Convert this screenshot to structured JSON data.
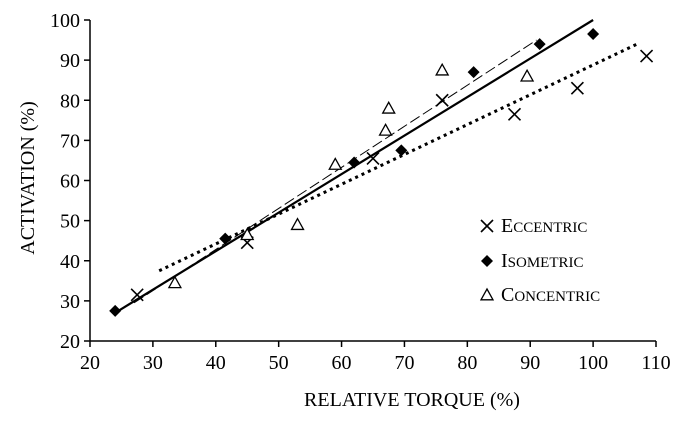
{
  "chart_data": {
    "type": "scatter",
    "title": "",
    "xlabel": "RELATIVE TORQUE (%)",
    "ylabel": "ACTIVATION (%)",
    "xlim": [
      20,
      110
    ],
    "ylim": [
      20,
      100
    ],
    "xticks": [
      20,
      30,
      40,
      50,
      60,
      70,
      80,
      90,
      100,
      110
    ],
    "yticks": [
      20,
      30,
      40,
      50,
      60,
      70,
      80,
      90,
      100
    ],
    "grid": false,
    "legend_position": "bottom-right",
    "series": [
      {
        "name": "ECCENTRIC",
        "marker": "x",
        "fit_line": "dotted",
        "fit": {
          "x": [
            31,
            107
          ],
          "y": [
            37.5,
            94
          ]
        },
        "points": [
          {
            "x": 27.5,
            "y": 31.5
          },
          {
            "x": 45,
            "y": 44.5
          },
          {
            "x": 65,
            "y": 65.5
          },
          {
            "x": 76,
            "y": 80
          },
          {
            "x": 87.5,
            "y": 76.5
          },
          {
            "x": 97.5,
            "y": 83
          },
          {
            "x": 108.5,
            "y": 91
          }
        ]
      },
      {
        "name": "ISOMETRIC",
        "marker": "diamond",
        "fit_line": "solid",
        "fit": {
          "x": [
            24.5,
            100
          ],
          "y": [
            27.5,
            100
          ]
        },
        "points": [
          {
            "x": 24,
            "y": 27.5
          },
          {
            "x": 41.5,
            "y": 45.5
          },
          {
            "x": 62,
            "y": 64.5
          },
          {
            "x": 69.5,
            "y": 67.5
          },
          {
            "x": 81,
            "y": 87
          },
          {
            "x": 91.5,
            "y": 94
          },
          {
            "x": 100,
            "y": 96.5
          }
        ]
      },
      {
        "name": "CONCENTRIC",
        "marker": "triangle",
        "fit_line": "dashed",
        "fit": {
          "x": [
            27,
            91
          ],
          "y": [
            29.5,
            95
          ]
        },
        "points": [
          {
            "x": 33.5,
            "y": 34.5
          },
          {
            "x": 45,
            "y": 46.5
          },
          {
            "x": 53,
            "y": 49
          },
          {
            "x": 59,
            "y": 64
          },
          {
            "x": 67,
            "y": 72.5
          },
          {
            "x": 67.5,
            "y": 78
          },
          {
            "x": 76,
            "y": 87.5
          },
          {
            "x": 89.5,
            "y": 86
          }
        ]
      }
    ]
  }
}
